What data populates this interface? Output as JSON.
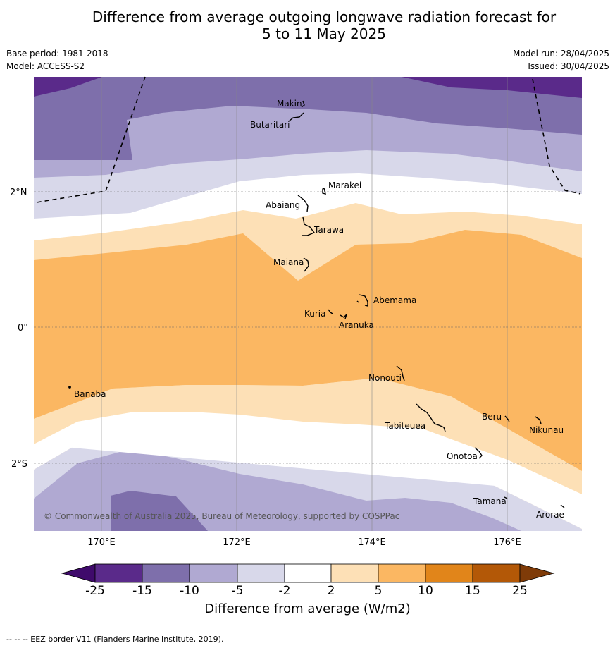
{
  "title_line1": "Difference from average outgoing longwave radiation forecast for",
  "title_line2": "5 to 11 May 2025",
  "base_period": "Base period: 1981-2018",
  "model": "Model: ACCESS-S2",
  "model_run": "Model run: 28/04/2025",
  "issued": "Issued: 30/04/2025",
  "lat_labels": [
    "2°N",
    "0°",
    "2°S"
  ],
  "lon_labels": [
    "170°E",
    "172°E",
    "174°E",
    "176°E"
  ],
  "places": {
    "makin": "Makin",
    "butaritari": "Butaritari",
    "marakei": "Marakei",
    "abaiang": "Abaiang",
    "tarawa": "Tarawa",
    "maiana": "Maiana",
    "abemama": "Abemama",
    "kuria": "Kuria",
    "aranuka": "Aranuka",
    "nonouti": "Nonouti",
    "banaba": "Banaba",
    "beru": "Beru",
    "nikunau": "Nikunau",
    "tabiteuea": "Tabiteuea",
    "onotoa": "Onotoa",
    "tamana": "Tamana",
    "arorae": "Arorae"
  },
  "copyright": "© Commonwealth of Australia 2025, Bureau of Meteorology, supported by COSPPac",
  "colorbar": {
    "ticks": [
      "-25",
      "-15",
      "-10",
      "-5",
      "-2",
      "2",
      "5",
      "10",
      "15",
      "25"
    ],
    "colors": [
      "#3f0a6b",
      "#5a2a8a",
      "#7e6fab",
      "#b0a9d2",
      "#d8d8ea",
      "#ffffff",
      "#fde0b6",
      "#fbb762",
      "#e1851a",
      "#b35807",
      "#7f3b08"
    ],
    "title": "Difference from average (W/m2)"
  },
  "footer": "--  --  -- EEZ border V11 (Flanders Marine Institute, 2019)."
}
